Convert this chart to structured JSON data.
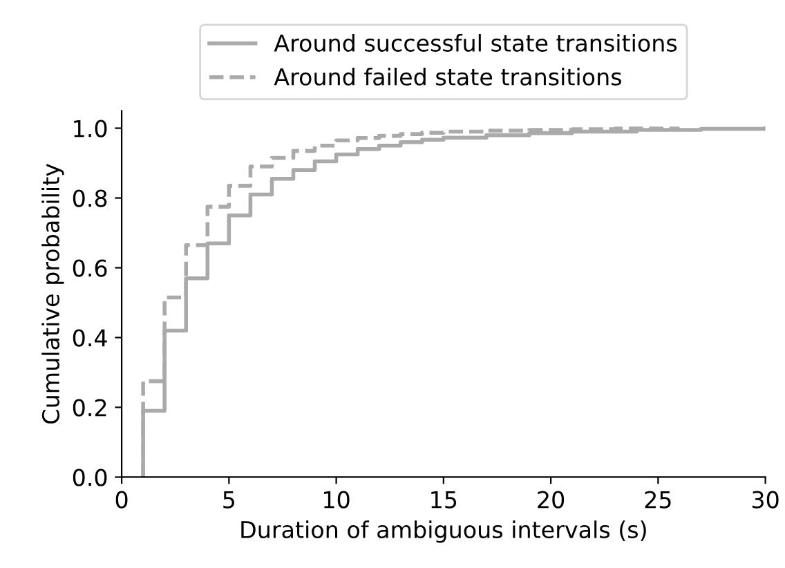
{
  "chart_data": {
    "type": "step",
    "xlabel": "Duration of ambiguous intervals (s)",
    "ylabel": "Cumulative probability",
    "xlim": [
      0,
      30
    ],
    "ylim": [
      0,
      1.05
    ],
    "xticks": [
      0,
      5,
      10,
      15,
      20,
      25,
      30
    ],
    "yticks": [
      {
        "value": 0,
        "label": "0.0"
      },
      0.2,
      0.4,
      0.6,
      0.8,
      {
        "value": 1,
        "label": "1.0"
      }
    ],
    "grid": false,
    "legend": "top",
    "marker": "none",
    "series": [
      {
        "name": "Around successful state transitions",
        "color": "#aaaaaa",
        "line_style": "solid",
        "x": [
          1,
          1,
          2,
          3,
          4,
          5,
          6,
          7,
          8,
          9,
          10,
          11,
          12,
          13,
          14,
          15,
          17,
          19,
          21,
          24,
          27,
          30
        ],
        "values": [
          0,
          0.19,
          0.42,
          0.57,
          0.67,
          0.75,
          0.81,
          0.855,
          0.88,
          0.905,
          0.925,
          0.94,
          0.95,
          0.96,
          0.967,
          0.973,
          0.98,
          0.986,
          0.99,
          0.995,
          0.998,
          1.0
        ]
      },
      {
        "name": "Around failed state transitions",
        "color": "#aaaaaa",
        "line_style": "dashed",
        "x": [
          1,
          1,
          2,
          3,
          4,
          5,
          6,
          7,
          8,
          9,
          10,
          11,
          12,
          13,
          14,
          15,
          17,
          19,
          21,
          23,
          26
        ],
        "values": [
          0,
          0.275,
          0.515,
          0.665,
          0.775,
          0.835,
          0.89,
          0.915,
          0.935,
          0.95,
          0.965,
          0.972,
          0.978,
          0.983,
          0.987,
          0.99,
          0.993,
          0.995,
          0.997,
          0.999,
          1.0
        ]
      }
    ]
  }
}
